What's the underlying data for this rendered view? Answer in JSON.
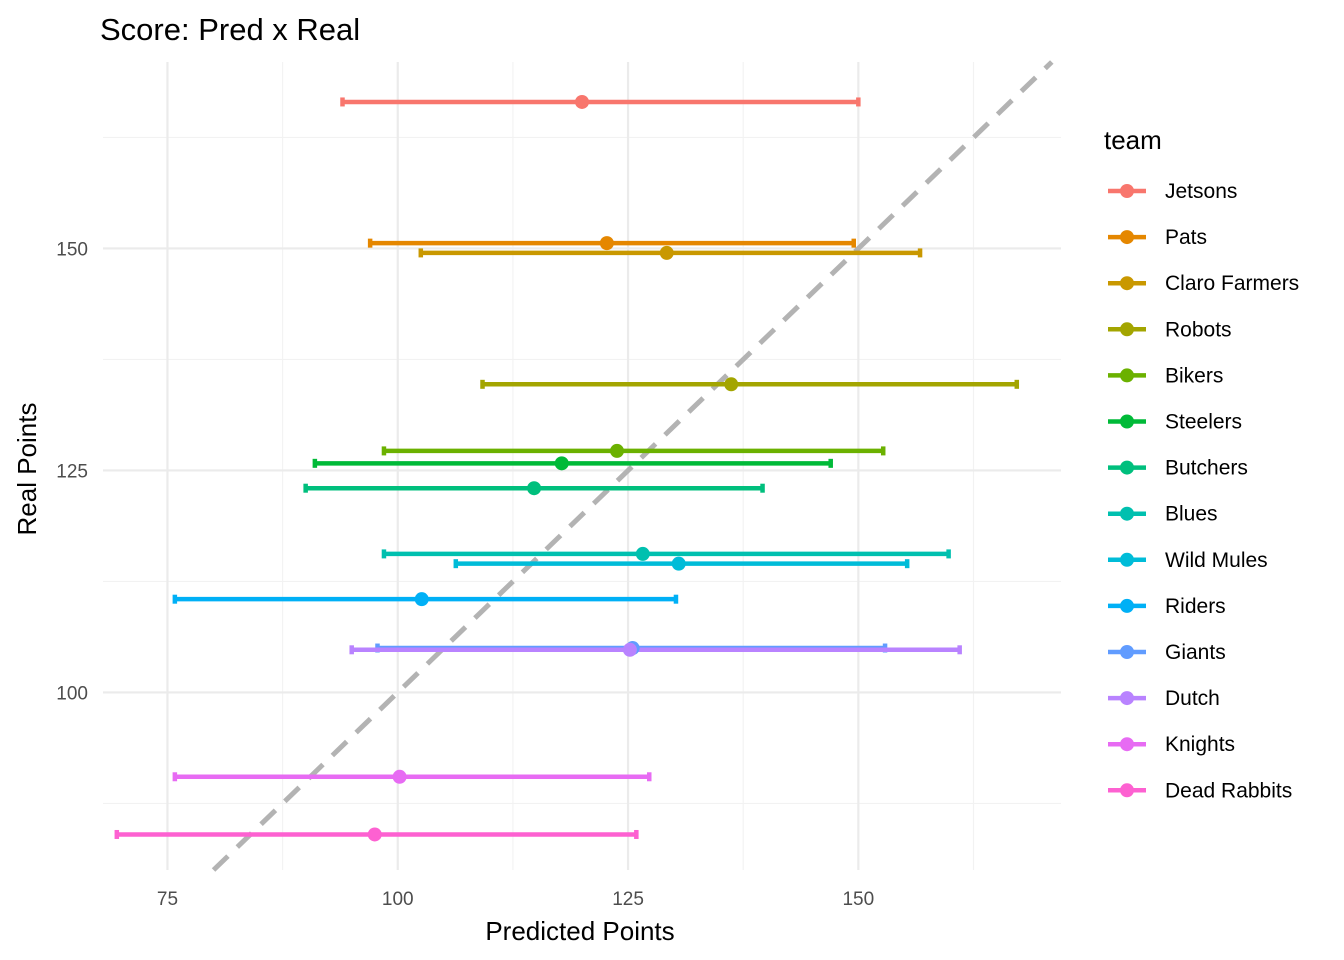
{
  "chart_data": {
    "type": "scatter",
    "title": "Score: Pred x Real",
    "xlabel": "Predicted Points",
    "ylabel": "Real Points",
    "xlim": [
      68,
      172
    ],
    "ylim": [
      80,
      171
    ],
    "x_ticks": [
      75,
      100,
      125,
      150
    ],
    "y_ticks": [
      100,
      125,
      150
    ],
    "grid": true,
    "reference_line": {
      "slope": 1,
      "intercept": 0,
      "style": "dashed",
      "color": "#b3b3b3"
    },
    "legend": {
      "title": "team",
      "position": "right"
    },
    "series": [
      {
        "name": "Jetsons",
        "color": "#F8766D",
        "x": 120.0,
        "y": 166.5,
        "xmin": 94.0,
        "xmax": 150.0
      },
      {
        "name": "Pats",
        "color": "#E58700",
        "x": 122.7,
        "y": 150.6,
        "xmin": 97.0,
        "xmax": 149.5
      },
      {
        "name": "Claro Farmers",
        "color": "#C99800",
        "x": 129.2,
        "y": 149.5,
        "xmin": 102.5,
        "xmax": 156.7
      },
      {
        "name": "Robots",
        "color": "#A3A500",
        "x": 136.2,
        "y": 134.7,
        "xmin": 109.2,
        "xmax": 167.2
      },
      {
        "name": "Bikers",
        "color": "#6BB100",
        "x": 123.8,
        "y": 127.2,
        "xmin": 98.5,
        "xmax": 152.7
      },
      {
        "name": "Steelers",
        "color": "#00BA38",
        "x": 117.8,
        "y": 125.8,
        "xmin": 91.0,
        "xmax": 147.0
      },
      {
        "name": "Butchers",
        "color": "#00BF7D",
        "x": 114.8,
        "y": 123.0,
        "xmin": 90.0,
        "xmax": 139.6
      },
      {
        "name": "Blues",
        "color": "#00C0AF",
        "x": 126.6,
        "y": 115.6,
        "xmin": 98.5,
        "xmax": 159.8
      },
      {
        "name": "Wild Mules",
        "color": "#00BCD8",
        "x": 130.5,
        "y": 114.5,
        "xmin": 106.3,
        "xmax": 155.3
      },
      {
        "name": "Riders",
        "color": "#00B0F6",
        "x": 102.6,
        "y": 110.5,
        "xmin": 75.8,
        "xmax": 130.2
      },
      {
        "name": "Giants",
        "color": "#619CFF",
        "x": 125.5,
        "y": 105.0,
        "xmin": 97.8,
        "xmax": 152.9
      },
      {
        "name": "Dutch",
        "color": "#B983FF",
        "x": 125.2,
        "y": 104.8,
        "xmin": 95.0,
        "xmax": 161.0
      },
      {
        "name": "Knights",
        "color": "#E76BF3",
        "x": 100.2,
        "y": 90.5,
        "xmin": 75.8,
        "xmax": 127.3
      },
      {
        "name": "Dead Rabbits",
        "color": "#FD61D1",
        "x": 97.5,
        "y": 84.0,
        "xmin": 69.5,
        "xmax": 125.9
      }
    ]
  },
  "legend_colors": [
    "#F8766D",
    "#E58700",
    "#C99800",
    "#A3A500",
    "#6BB100",
    "#00BA38",
    "#00BF7D",
    "#00C0AF",
    "#00BCD8",
    "#00B0F6",
    "#619CFF",
    "#B983FF",
    "#E76BF3",
    "#FD61D1"
  ]
}
